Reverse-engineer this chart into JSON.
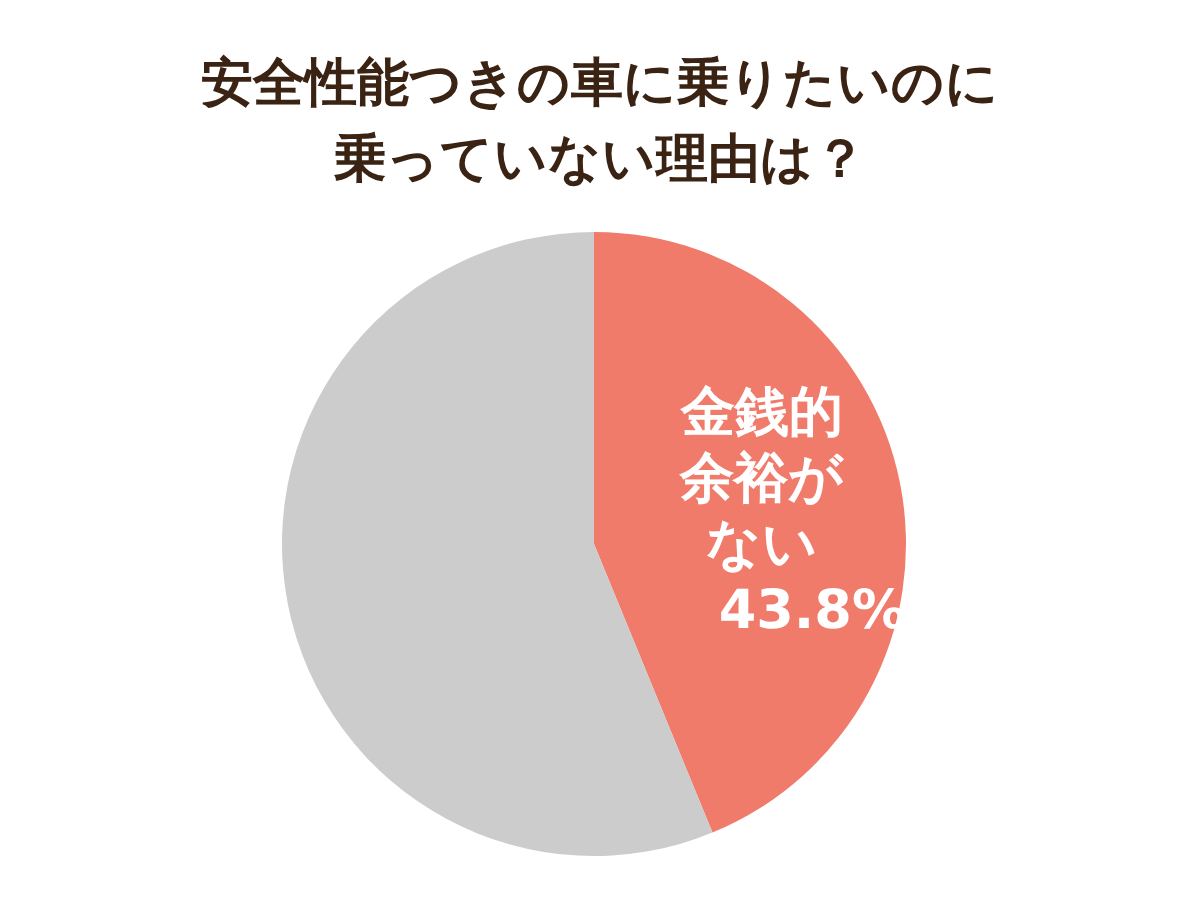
{
  "chart_data": {
    "type": "pie",
    "title": "安全性能つきの車に乗りたいのに乗っていない理由は？",
    "categories": [
      "金銭的余裕がない",
      null
    ],
    "values": [
      43.8,
      56.2
    ],
    "value_labels": [
      "43.8%",
      null
    ],
    "colors": [
      "#f07b6b",
      "#cccccc"
    ]
  }
}
